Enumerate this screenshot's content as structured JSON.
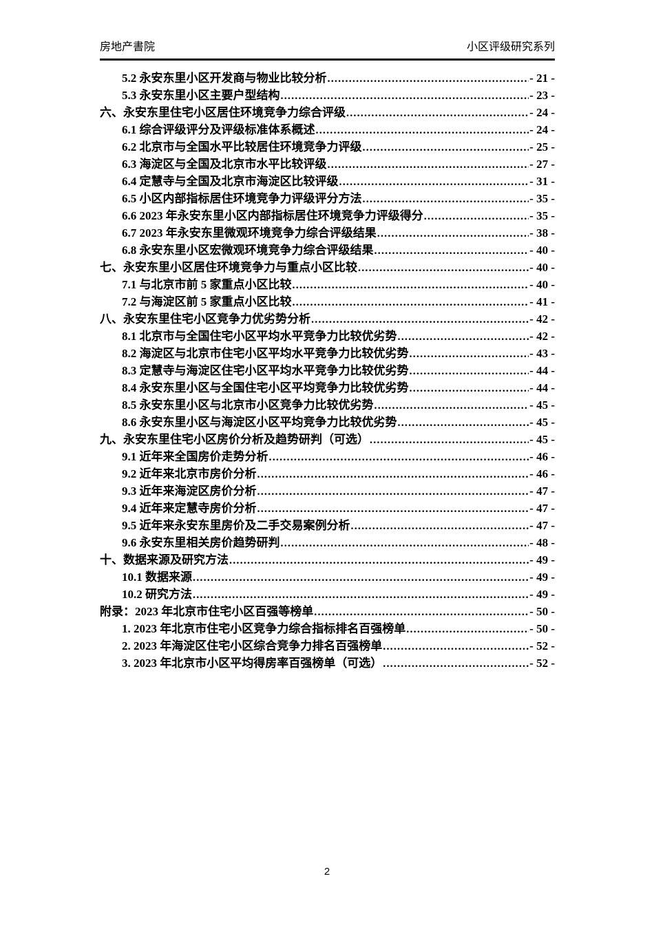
{
  "header": {
    "left": "房地产書院",
    "right": "小区评级研究系列"
  },
  "toc": {
    "entries": [
      {
        "title": "5.2 永安东里小区开发商与物业比较分析",
        "page_label": "- 21 -",
        "level": 1
      },
      {
        "title": "5.3 永安东里小区主要户型结构",
        "page_label": "- 23 -",
        "level": 1
      },
      {
        "title": "六、永安东里住宅小区居住环境竞争力综合评级",
        "page_label": "- 24 -",
        "level": 0
      },
      {
        "title": "6.1 综合评级评分及评级标准体系概述",
        "page_label": "- 24 -",
        "level": 1
      },
      {
        "title": "6.2 北京市与全国水平比较居住环境竞争力评级",
        "page_label": "- 25 -",
        "level": 1
      },
      {
        "title": "6.3 海淀区与全国及北京市水平比较评级",
        "page_label": "- 27 -",
        "level": 1
      },
      {
        "title": "6.4 定慧寺与全国及北京市海淀区比较评级",
        "page_label": "- 31 -",
        "level": 1
      },
      {
        "title": "6.5 小区内部指标居住环境竞争力评级评分方法",
        "page_label": "- 35 -",
        "level": 1
      },
      {
        "title": "6.6 2023 年永安东里小区内部指标居住环境竞争力评级得分",
        "page_label": "- 35 -",
        "level": 1
      },
      {
        "title": "6.7 2023 年永安东里微观环境竞争力综合评级结果",
        "page_label": "- 38 -",
        "level": 1
      },
      {
        "title": "6.8 永安东里小区宏微观环境竞争力综合评级结果",
        "page_label": "- 40 -",
        "level": 1
      },
      {
        "title": "七、永安东里小区居住环境竞争力与重点小区比较",
        "page_label": "- 40 -",
        "level": 0
      },
      {
        "title": "7.1 与北京市前 5 家重点小区比较",
        "page_label": "- 40 -",
        "level": 1
      },
      {
        "title": "7.2 与海淀区前 5 家重点小区比较",
        "page_label": "- 41 -",
        "level": 1
      },
      {
        "title": "八、永安东里住宅小区竞争力优劣势分析",
        "page_label": "- 42 -",
        "level": 0
      },
      {
        "title": "8.1 北京市与全国住宅小区平均水平竞争力比较优劣势",
        "page_label": "- 42 -",
        "level": 1
      },
      {
        "title": "8.2 海淀区与北京市住宅小区平均水平竞争力比较优劣势",
        "page_label": "- 43 -",
        "level": 1
      },
      {
        "title": "8.3 定慧寺与海淀区住宅小区平均水平竞争力比较优劣势",
        "page_label": "- 44 -",
        "level": 1
      },
      {
        "title": "8.4 永安东里小区与全国住宅小区平均竞争力比较优劣势",
        "page_label": "- 44 -",
        "level": 1
      },
      {
        "title": "8.5 永安东里小区与北京市小区竞争力比较优劣势",
        "page_label": "- 45 -",
        "level": 1
      },
      {
        "title": "8.6 永安东里小区与海淀区小区平均竞争力比较优劣势",
        "page_label": "- 45 -",
        "level": 1
      },
      {
        "title": "九、永安东里住宅小区房价分析及趋势研判（可选）",
        "page_label": "- 45 -",
        "level": 0
      },
      {
        "title": "9.1 近年来全国房价走势分析",
        "page_label": "- 46 -",
        "level": 1
      },
      {
        "title": "9.2 近年来北京市房价分析",
        "page_label": "- 46 -",
        "level": 1
      },
      {
        "title": "9.3 近年来海淀区房价分析",
        "page_label": "- 47 -",
        "level": 1
      },
      {
        "title": "9.4 近年来定慧寺房价分析",
        "page_label": "- 47 -",
        "level": 1
      },
      {
        "title": "9.5 近年来永安东里房价及二手交易案例分析",
        "page_label": "- 47 -",
        "level": 1
      },
      {
        "title": "9.6 永安东里相关房价趋势研判",
        "page_label": "- 48 -",
        "level": 1
      },
      {
        "title": "十、数据来源及研究方法",
        "page_label": "- 49 -",
        "level": 0
      },
      {
        "title": "10.1 数据来源",
        "page_label": "- 49 -",
        "level": 1
      },
      {
        "title": "10.2 研究方法",
        "page_label": "- 49 -",
        "level": 1
      },
      {
        "title": "附录：2023 年北京市住宅小区百强等榜单",
        "page_label": "- 50 -",
        "level": 0
      },
      {
        "title": "1. 2023 年北京市住宅小区竞争力综合指标排名百强榜单",
        "page_label": "- 50 -",
        "level": 1
      },
      {
        "title": "2. 2023 年海淀区住宅小区综合竞争力排名百强榜单",
        "page_label": "- 52 -",
        "level": 1
      },
      {
        "title": "3. 2023 年北京市小区平均得房率百强榜单（可选）",
        "page_label": "- 52 -",
        "level": 1
      }
    ]
  },
  "footer": {
    "page_number": "2"
  }
}
